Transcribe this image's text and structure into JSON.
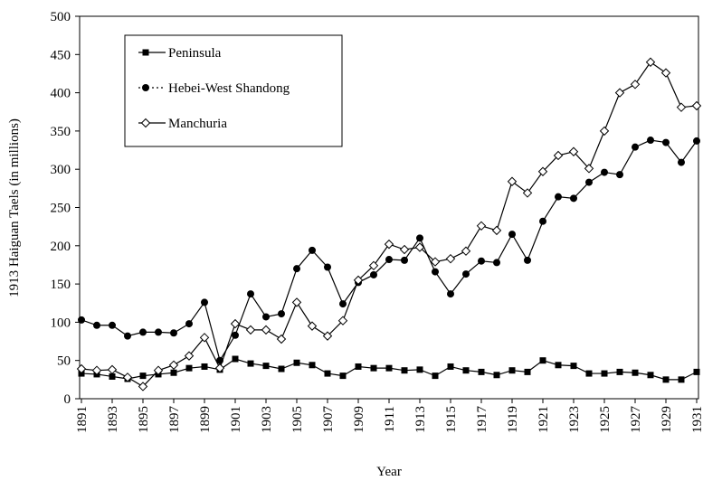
{
  "chart_data": {
    "type": "line",
    "x_label": "Year",
    "y_label": "1913 Haiguan Taels (in millions)",
    "x": [
      1891,
      1892,
      1893,
      1894,
      1895,
      1896,
      1897,
      1898,
      1899,
      1900,
      1901,
      1902,
      1903,
      1904,
      1905,
      1906,
      1907,
      1908,
      1909,
      1910,
      1911,
      1912,
      1913,
      1914,
      1915,
      1916,
      1917,
      1918,
      1919,
      1920,
      1921,
      1922,
      1923,
      1924,
      1925,
      1926,
      1927,
      1928,
      1929,
      1930,
      1931
    ],
    "series": [
      {
        "name": "Peninsula",
        "color": "#000000",
        "marker": "square",
        "line_style": "solid",
        "values": [
          33,
          32,
          29,
          26,
          30,
          32,
          34,
          40,
          42,
          38,
          52,
          46,
          43,
          39,
          47,
          44,
          33,
          30,
          42,
          40,
          40,
          37,
          38,
          30,
          42,
          37,
          35,
          31,
          37,
          35,
          50,
          44,
          43,
          33,
          33,
          35,
          34,
          31,
          25,
          25,
          35
        ]
      },
      {
        "name": "Hebei-West Shandong",
        "color": "#000000",
        "marker": "circle",
        "line_style": "dotted",
        "values": [
          103,
          96,
          96,
          82,
          87,
          87,
          86,
          98,
          126,
          50,
          83,
          137,
          107,
          111,
          170,
          194,
          172,
          124,
          152,
          162,
          182,
          181,
          210,
          166,
          137,
          163,
          180,
          178,
          215,
          181,
          232,
          264,
          262,
          283,
          296,
          293,
          329,
          338,
          335,
          309,
          337
        ]
      },
      {
        "name": "Manchuria",
        "color": "#000000",
        "marker": "diamond",
        "line_style": "solid",
        "values": [
          39,
          37,
          38,
          28,
          16,
          37,
          44,
          56,
          80,
          40,
          98,
          90,
          90,
          78,
          126,
          95,
          82,
          102,
          155,
          174,
          202,
          195,
          198,
          179,
          183,
          193,
          226,
          220,
          284,
          269,
          297,
          318,
          323,
          301,
          350,
          400,
          411,
          440,
          426,
          381,
          383
        ]
      }
    ],
    "xlim": [
      1891,
      1931
    ],
    "xticks": [
      1891,
      1893,
      1895,
      1897,
      1899,
      1901,
      1903,
      1905,
      1907,
      1909,
      1911,
      1913,
      1915,
      1917,
      1919,
      1921,
      1923,
      1925,
      1927,
      1929,
      1931
    ],
    "ylim": [
      0,
      500
    ],
    "yticks": [
      0,
      50,
      100,
      150,
      200,
      250,
      300,
      350,
      400,
      450,
      500
    ],
    "grid": false,
    "legend_position": "upper left"
  }
}
